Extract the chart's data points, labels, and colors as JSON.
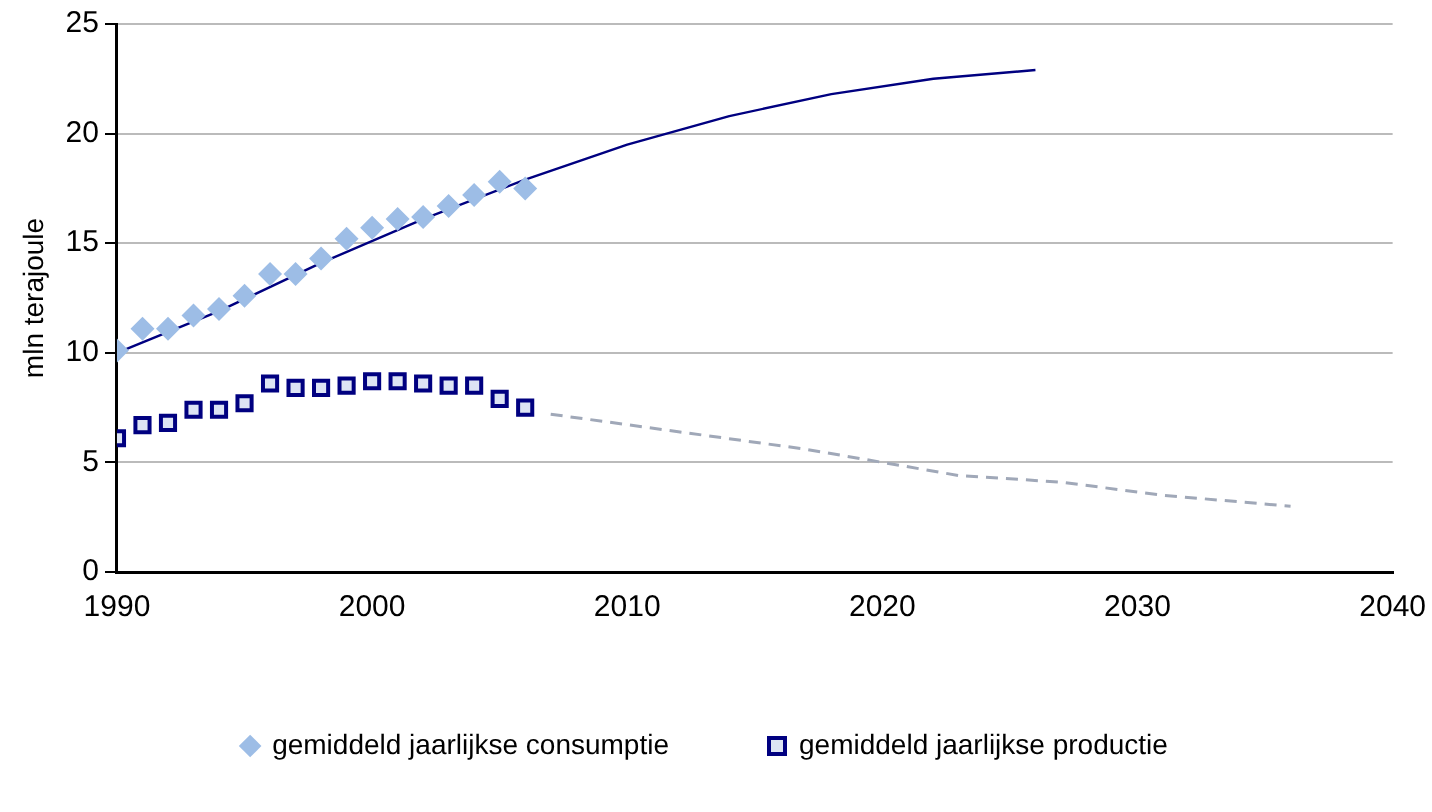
{
  "chart_data": {
    "type": "scatter",
    "ylabel": "mln terajoule",
    "xlim": [
      1990,
      2040
    ],
    "xticks": [
      1990,
      2000,
      2010,
      2020,
      2030,
      2040
    ],
    "ylim": [
      0,
      25
    ],
    "yticks": [
      0,
      5,
      10,
      15,
      20,
      25
    ],
    "grid": "y",
    "legend": "bottom",
    "series": [
      {
        "name": "gemiddeld jaarlijkse consumptie",
        "marker": "diamond",
        "color": "#9dbde6",
        "x": [
          1990,
          1991,
          1992,
          1993,
          1994,
          1995,
          1996,
          1997,
          1998,
          1999,
          2000,
          2001,
          2002,
          2003,
          2004,
          2005,
          2006
        ],
        "values": [
          10.1,
          11.1,
          11.1,
          11.7,
          12.0,
          12.6,
          13.6,
          13.6,
          14.3,
          15.2,
          15.7,
          16.1,
          16.2,
          16.7,
          17.2,
          17.8,
          17.5
        ]
      },
      {
        "name": "gemiddeld jaarlijkse productie",
        "marker": "square",
        "color": "#000080",
        "x": [
          1990,
          1991,
          1992,
          1993,
          1994,
          1995,
          1996,
          1997,
          1998,
          1999,
          2000,
          2001,
          2002,
          2003,
          2004,
          2005,
          2006
        ],
        "values": [
          6.1,
          6.7,
          6.8,
          7.4,
          7.4,
          7.7,
          8.6,
          8.4,
          8.4,
          8.5,
          8.7,
          8.7,
          8.6,
          8.5,
          8.5,
          7.9,
          7.5
        ]
      },
      {
        "type": "line",
        "marker": "none",
        "line_style": "solid",
        "color": "#000080",
        "x": [
          1990,
          1994,
          1998,
          2002,
          2006,
          2010,
          2014,
          2018,
          2022,
          2026
        ],
        "values": [
          10.0,
          11.9,
          14.1,
          16.1,
          17.9,
          19.5,
          20.8,
          21.8,
          22.5,
          22.9
        ]
      },
      {
        "type": "line",
        "marker": "none",
        "line_style": "dashed",
        "color": "#a0a8b8",
        "x": [
          2007,
          2012,
          2017,
          2020,
          2023,
          2027,
          2031,
          2036
        ],
        "values": [
          7.2,
          6.4,
          5.6,
          5.0,
          4.4,
          4.1,
          3.5,
          3.0
        ]
      }
    ]
  }
}
